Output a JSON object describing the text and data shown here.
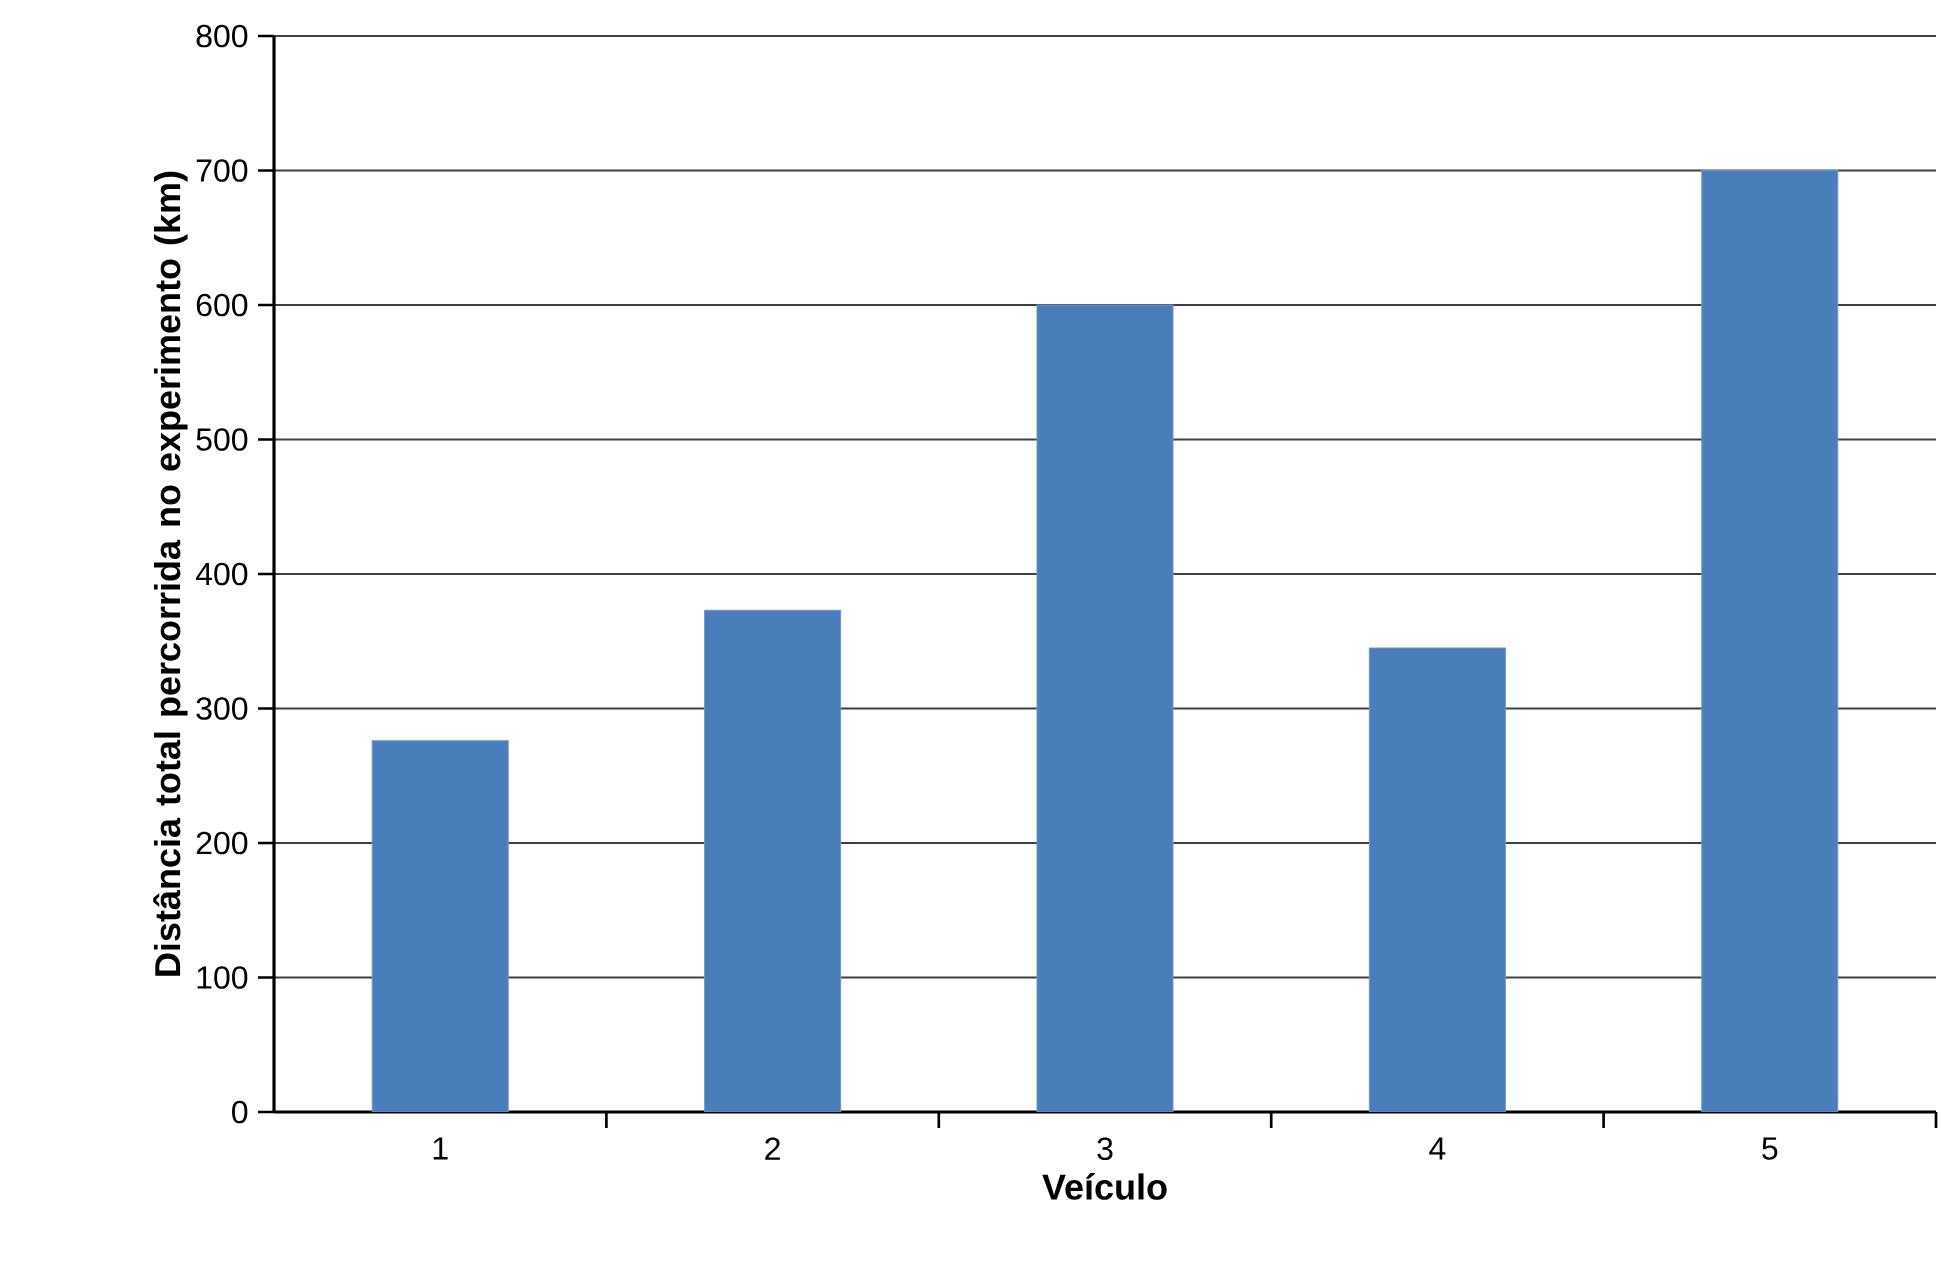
{
  "chart_data": {
    "type": "bar",
    "xlabel": "Veículo",
    "ylabel": "Distância total percorrida no experimento (km)",
    "categories": [
      "1",
      "2",
      "3",
      "4",
      "5"
    ],
    "values": [
      276,
      373,
      600,
      345,
      700
    ],
    "color": "#4a7ebb",
    "ylim": [
      0,
      800
    ],
    "yticks": [
      0,
      100,
      200,
      300,
      400,
      500,
      600,
      700,
      800
    ],
    "grid": "y"
  }
}
